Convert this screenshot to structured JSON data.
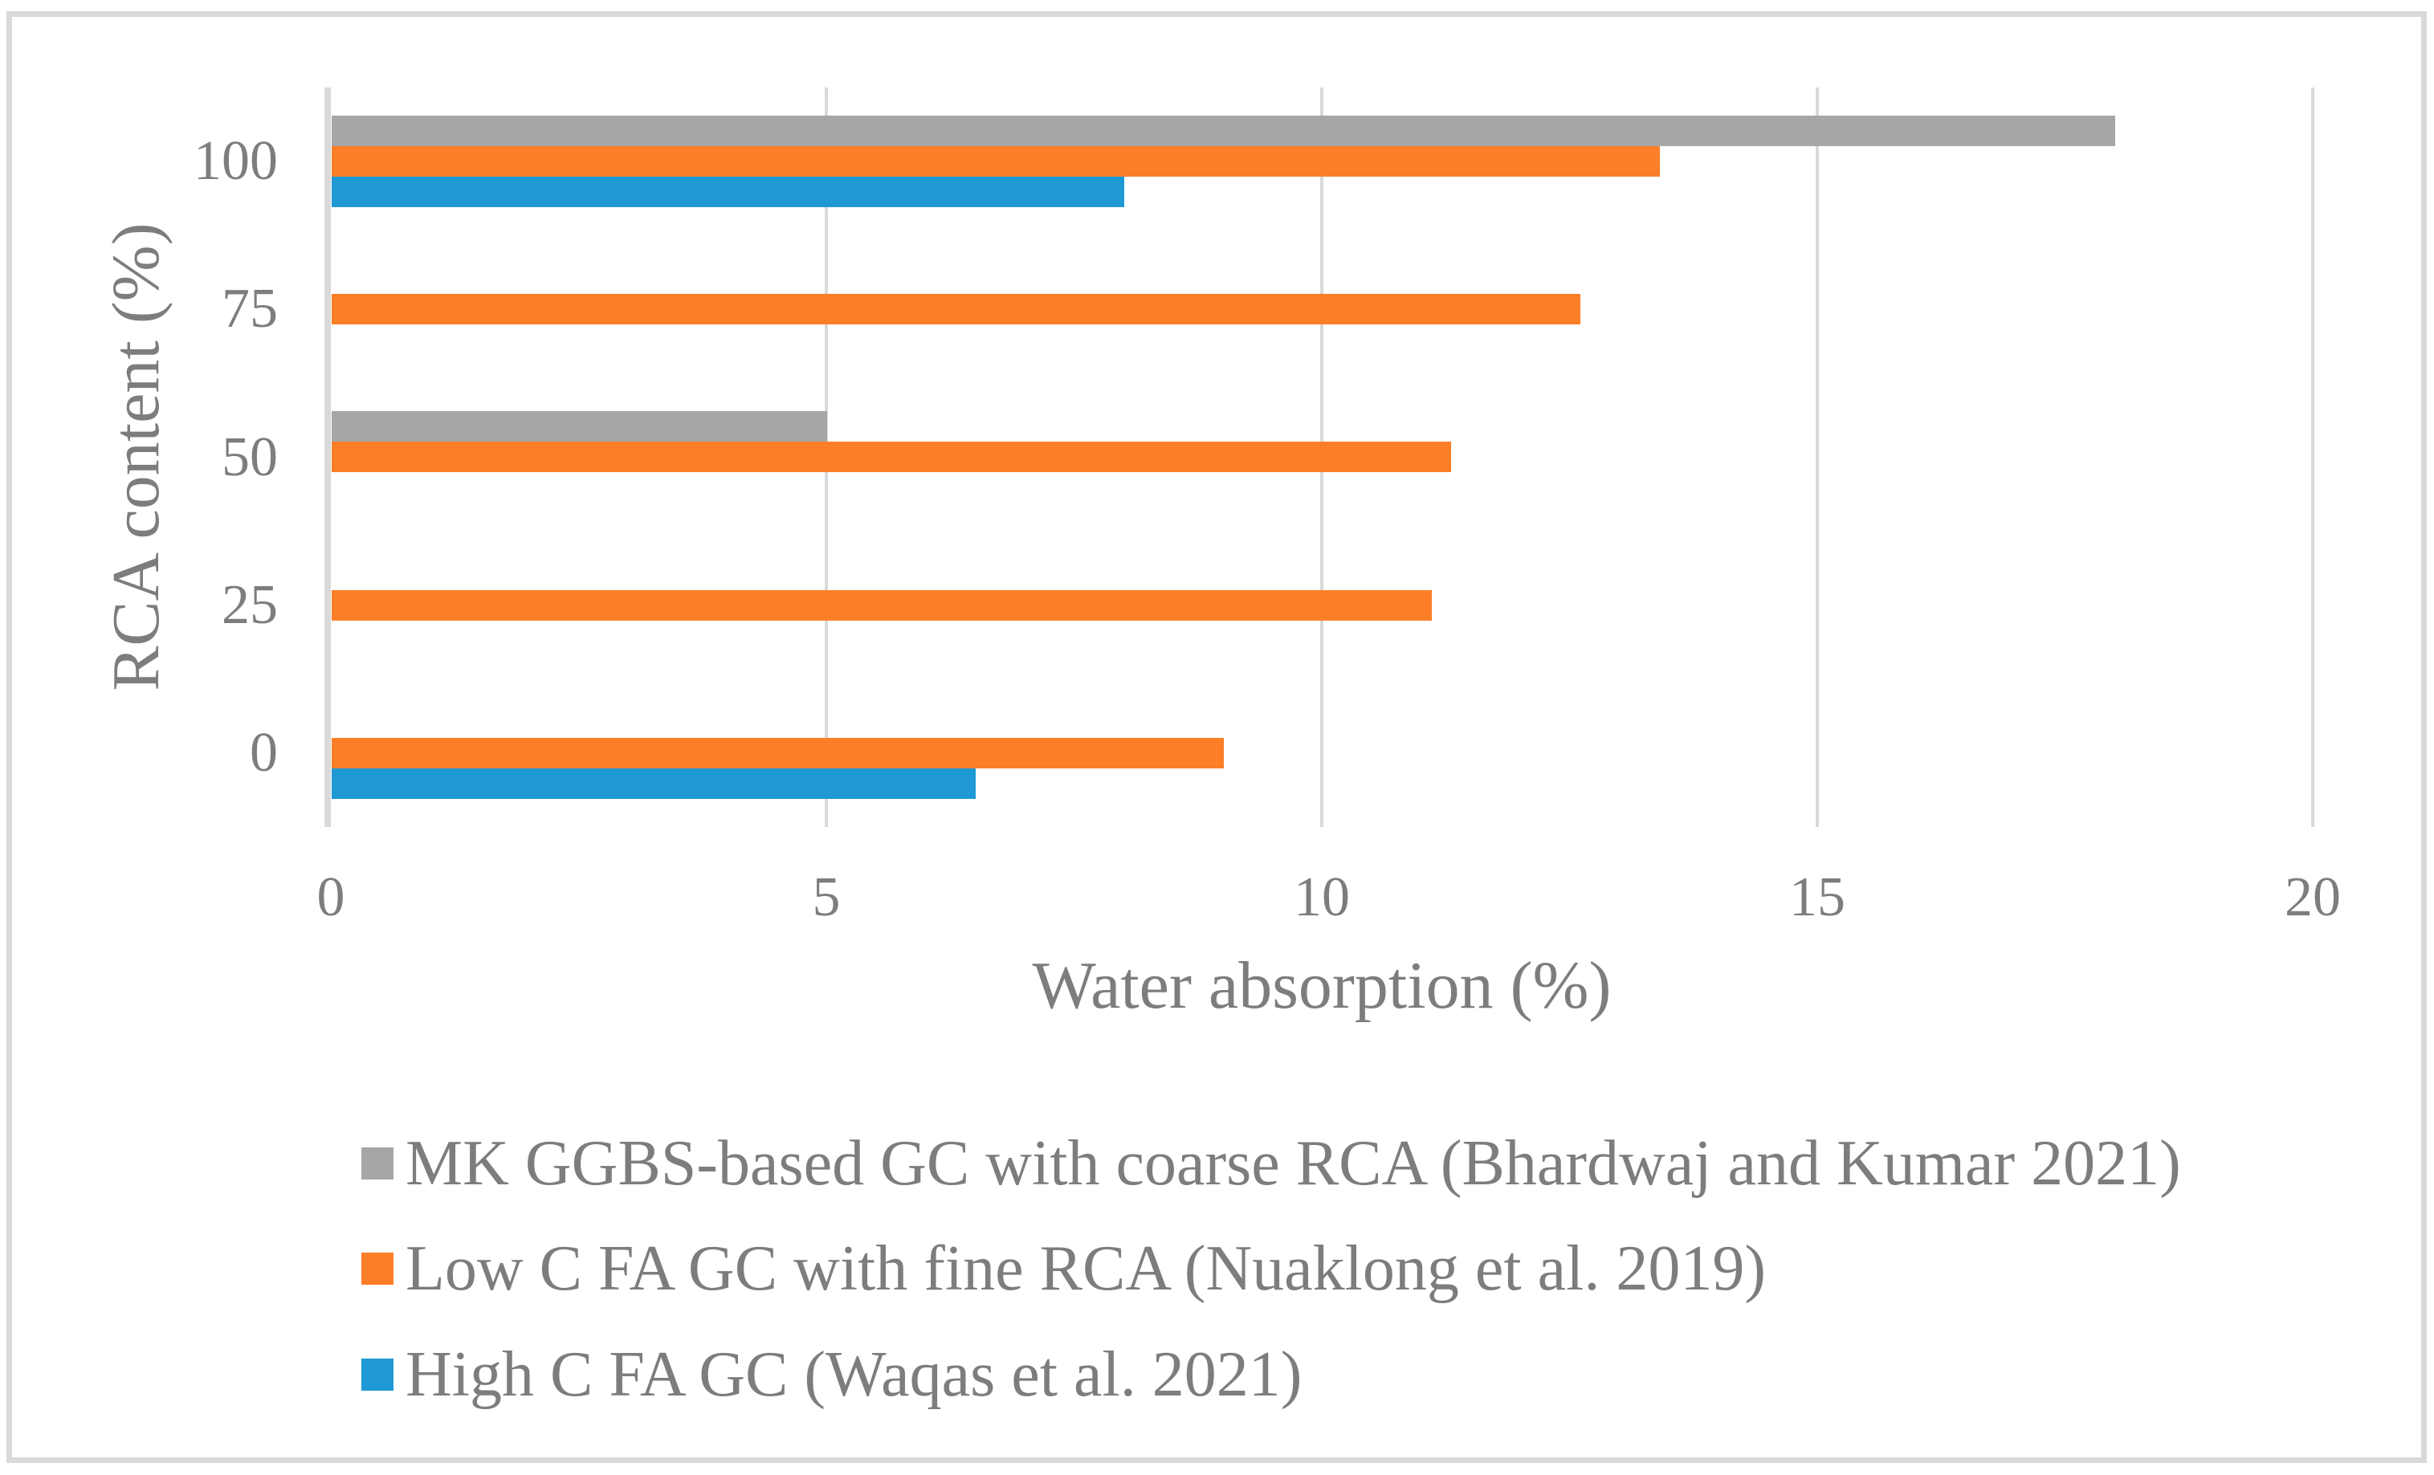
{
  "chart_data": {
    "type": "bar",
    "orientation": "horizontal",
    "title": "",
    "xlabel": "Water absorption (%)",
    "ylabel": "RCA content (%)",
    "xlim": [
      0,
      20
    ],
    "x_ticks": [
      "0",
      "5",
      "10",
      "15",
      "20"
    ],
    "categories": [
      "100",
      "75",
      "50",
      "25",
      "0"
    ],
    "series": [
      {
        "name": "MK GGBS-based GC with coarse RCA (Bhardwaj and Kumar 2021)",
        "color": "#A6A6A6",
        "values": [
          18.0,
          null,
          5.0,
          null,
          null
        ]
      },
      {
        "name": "Low C FA GC with fine RCA (Nuaklong et al. 2019)",
        "color": "#FC7E27",
        "values": [
          13.4,
          12.6,
          11.3,
          11.1,
          9.0
        ]
      },
      {
        "name": "High C FA GC (Waqas et al. 2021)",
        "color": "#1F99D4",
        "values": [
          8.0,
          null,
          null,
          null,
          6.5
        ]
      }
    ],
    "grid": "vertical",
    "gridline_color": "#D9D9D9",
    "axis_line_color": "#D9D9D9",
    "text_color": "#7D7D7D",
    "legend_position": "bottom-left"
  }
}
